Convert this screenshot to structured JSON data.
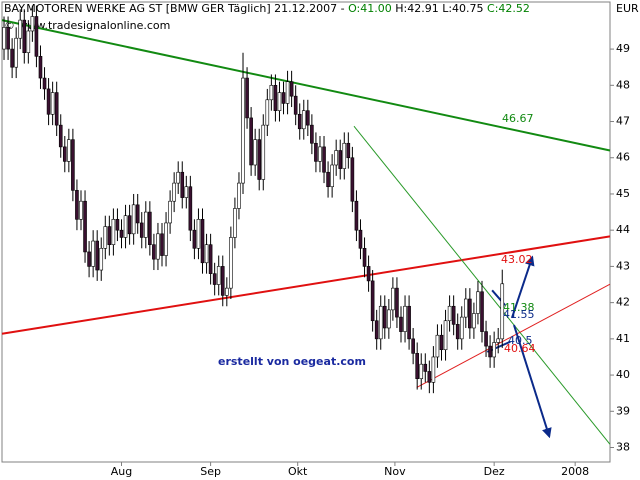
{
  "chart_data": {
    "type": "candlestick",
    "title": [
      "BAY.MOTOREN WERKE AG ST [BMW GER  Täglich] 21.12.2007 - ",
      "O:41.00",
      " H:42.91 L:40.75",
      " C:42.52"
    ],
    "title_colors": [
      "#000000",
      "#008000",
      "#000000",
      "#008000"
    ],
    "copyright": "© www.tradesignalonline.com",
    "credit": "erstellt von oegeat.com",
    "y_unit": "EUR",
    "ylim": [
      37.6,
      50.3
    ],
    "yticks": [
      38,
      39,
      40,
      41,
      42,
      43,
      44,
      45,
      46,
      47,
      48,
      49
    ],
    "xlim": [
      -0.5,
      149.6
    ],
    "xticks": [
      {
        "value": 29,
        "label": "Aug"
      },
      {
        "value": 51,
        "label": "Sep"
      },
      {
        "value": 72.5,
        "label": "Okt"
      },
      {
        "value": 96.5,
        "label": "Nov"
      },
      {
        "value": 121,
        "label": "Dez"
      },
      {
        "value": 141,
        "label": "2008"
      }
    ],
    "up_color": "#ffffff",
    "down_color": "#3a1030",
    "open": [
      49.0,
      49.6,
      49.0,
      48.5,
      49.3,
      49.8,
      48.9,
      49.5,
      49.9,
      48.8,
      48.2,
      47.9,
      47.2,
      47.8,
      46.9,
      46.3,
      45.9,
      46.5,
      45.1,
      44.3,
      44.8,
      43.4,
      43.0,
      43.7,
      42.9,
      43.5,
      44.1,
      43.6,
      44.3,
      44.0,
      43.8,
      44.4,
      43.9,
      44.7,
      44.2,
      43.8,
      44.5,
      43.6,
      43.2,
      43.9,
      43.3,
      44.2,
      44.8,
      45.3,
      45.6,
      44.9,
      45.2,
      44.0,
      43.5,
      44.3,
      43.1,
      43.6,
      42.8,
      42.5,
      43.0,
      42.2,
      42.4,
      43.8,
      44.6,
      45.3,
      48.2,
      47.1,
      45.8,
      46.5,
      45.4,
      46.9,
      47.6,
      48.0,
      47.3,
      47.8,
      47.5,
      48.1,
      47.7,
      47.2,
      46.8,
      47.3,
      46.9,
      46.4,
      45.9,
      46.3,
      45.6,
      45.2,
      45.8,
      46.2,
      45.7,
      46.4,
      46.0,
      44.8,
      44.0,
      43.5,
      43.0,
      42.6,
      41.5,
      41.0,
      41.9,
      41.3,
      41.8,
      42.4,
      41.6,
      41.2,
      41.9,
      41.0,
      40.6,
      39.9,
      40.3,
      40.1,
      39.8,
      40.5,
      41.1,
      40.7,
      41.5,
      41.9,
      41.4,
      41.0,
      41.6,
      42.1,
      41.3,
      41.7,
      42.3,
      41.2,
      40.8,
      40.5,
      40.9,
      41.0
    ],
    "high": [
      49.9,
      49.9,
      49.3,
      49.6,
      50.1,
      50.1,
      49.8,
      50.2,
      50.2,
      49.1,
      48.5,
      48.2,
      48.1,
      48.1,
      47.2,
      46.6,
      46.8,
      46.8,
      45.4,
      45.1,
      45.1,
      43.7,
      44.0,
      44.0,
      43.8,
      44.4,
      44.4,
      44.6,
      44.6,
      44.3,
      44.7,
      44.7,
      45.0,
      45.0,
      44.5,
      44.8,
      44.8,
      43.9,
      44.2,
      44.2,
      44.5,
      45.1,
      45.6,
      45.9,
      45.9,
      45.5,
      45.5,
      44.3,
      44.6,
      44.6,
      43.9,
      43.9,
      43.1,
      43.3,
      43.3,
      42.7,
      44.1,
      44.9,
      45.6,
      48.9,
      48.5,
      47.4,
      46.8,
      46.8,
      47.2,
      47.9,
      48.3,
      48.3,
      48.1,
      48.1,
      48.4,
      48.4,
      48.0,
      47.5,
      47.6,
      47.6,
      47.2,
      46.7,
      46.6,
      46.6,
      45.9,
      46.1,
      46.5,
      46.5,
      46.7,
      46.7,
      46.3,
      45.1,
      44.3,
      43.8,
      43.3,
      42.9,
      41.8,
      42.2,
      42.2,
      42.1,
      42.7,
      42.7,
      41.9,
      42.2,
      42.2,
      41.3,
      40.9,
      40.6,
      40.6,
      40.4,
      40.8,
      41.4,
      41.4,
      41.8,
      42.2,
      42.2,
      41.7,
      41.9,
      42.4,
      42.4,
      42.0,
      42.6,
      42.6,
      41.5,
      41.1,
      41.2,
      41.3,
      42.91
    ],
    "low": [
      48.7,
      48.7,
      48.2,
      48.2,
      49.0,
      48.6,
      48.6,
      49.2,
      48.5,
      47.9,
      47.6,
      46.9,
      46.9,
      46.6,
      46.0,
      45.6,
      45.6,
      44.8,
      44.0,
      44.0,
      43.1,
      42.7,
      42.7,
      42.6,
      42.6,
      43.2,
      43.3,
      43.3,
      43.7,
      43.5,
      43.5,
      43.6,
      43.6,
      43.9,
      43.5,
      43.5,
      43.3,
      42.9,
      42.9,
      43.0,
      43.0,
      43.9,
      44.5,
      45.0,
      44.6,
      44.6,
      43.7,
      43.2,
      43.2,
      42.8,
      42.8,
      42.5,
      42.2,
      42.2,
      41.9,
      41.9,
      42.1,
      43.5,
      44.3,
      45.0,
      46.8,
      45.5,
      45.5,
      45.1,
      45.1,
      46.6,
      47.3,
      47.0,
      47.0,
      47.2,
      47.2,
      47.4,
      46.9,
      46.5,
      46.5,
      46.6,
      46.1,
      45.6,
      45.6,
      45.3,
      44.9,
      44.9,
      45.5,
      45.4,
      45.4,
      45.7,
      44.5,
      43.7,
      43.2,
      42.7,
      42.3,
      41.2,
      40.7,
      40.7,
      41.0,
      41.0,
      41.5,
      41.3,
      40.9,
      40.9,
      40.7,
      40.3,
      39.6,
      39.6,
      39.8,
      39.5,
      39.5,
      40.2,
      40.4,
      40.4,
      41.2,
      41.1,
      40.7,
      40.7,
      41.3,
      41.0,
      41.0,
      41.4,
      40.9,
      40.5,
      40.2,
      40.2,
      40.6,
      40.75
    ],
    "close": [
      49.6,
      49.0,
      48.5,
      49.3,
      49.8,
      48.9,
      49.5,
      49.9,
      48.8,
      48.2,
      47.9,
      47.2,
      47.8,
      46.9,
      46.3,
      45.9,
      46.5,
      45.1,
      44.3,
      44.8,
      43.4,
      43.0,
      43.7,
      42.9,
      43.5,
      44.1,
      43.6,
      44.3,
      44.0,
      43.8,
      44.4,
      43.9,
      44.7,
      44.2,
      43.8,
      44.5,
      43.6,
      43.2,
      43.9,
      43.3,
      44.2,
      44.8,
      45.3,
      45.6,
      44.9,
      45.2,
      44.0,
      43.5,
      44.3,
      43.1,
      43.6,
      42.8,
      42.5,
      43.0,
      42.2,
      42.4,
      43.8,
      44.6,
      45.3,
      48.2,
      47.1,
      45.8,
      46.5,
      45.4,
      46.9,
      47.6,
      48.0,
      47.3,
      47.8,
      47.5,
      48.1,
      47.7,
      47.2,
      46.8,
      47.3,
      46.9,
      46.4,
      45.9,
      46.3,
      45.6,
      45.2,
      45.8,
      46.2,
      45.7,
      46.4,
      46.0,
      44.8,
      44.0,
      43.5,
      43.0,
      42.6,
      41.5,
      41.0,
      41.9,
      41.3,
      41.8,
      42.4,
      41.6,
      41.2,
      41.9,
      41.0,
      40.6,
      39.9,
      40.3,
      40.1,
      39.8,
      40.5,
      41.1,
      40.7,
      41.5,
      41.9,
      41.4,
      41.0,
      41.6,
      42.1,
      41.3,
      41.7,
      42.3,
      41.2,
      40.8,
      40.5,
      40.9,
      41.0,
      42.52
    ],
    "lines": [
      {
        "color": "#128a12",
        "width": 2,
        "x": [
          -0.5,
          149.6
        ],
        "y": [
          49.8,
          46.2
        ],
        "arrow": false
      },
      {
        "color": "#e01010",
        "width": 2,
        "x": [
          -0.5,
          149.6
        ],
        "y": [
          41.14,
          43.83
        ],
        "arrow": false
      },
      {
        "color": "#2a9a2a",
        "width": 1,
        "x": [
          86.4,
          149.6
        ],
        "y": [
          46.87,
          38.09
        ],
        "arrow": false
      },
      {
        "color": "#e02020",
        "width": 1,
        "x": [
          101.9,
          149.6
        ],
        "y": [
          39.66,
          42.51
        ],
        "arrow": false
      },
      {
        "color": "#0b2a8a",
        "width": 2,
        "x": [
          125.4,
          130.4
        ],
        "y": [
          41.58,
          43.25
        ],
        "arrow": true
      },
      {
        "color": "#0b2a8a",
        "width": 2,
        "x": [
          125.9,
          134.6
        ],
        "y": [
          41.38,
          38.31
        ],
        "arrow": true
      },
      {
        "color": "#0b2a8a",
        "width": 2,
        "x": [
          120.5,
          123.7
        ],
        "y": [
          42.34,
          41.93
        ],
        "arrow": false
      },
      {
        "color": "#0b2a8a",
        "width": 2,
        "x": [
          119.3,
          125.0
        ],
        "y": [
          40.64,
          40.92
        ],
        "arrow": false
      }
    ],
    "annotations": [
      {
        "text": "46.67",
        "color": "#128a12"
      },
      {
        "text": "43.02",
        "color": "#e01010"
      },
      {
        "text": "41.38",
        "color": "#128a12"
      },
      {
        "text": "41.55",
        "color": "#0b2a8a"
      },
      {
        "text": "40.5",
        "color": "#0b2a8a"
      },
      {
        "text": "40.64",
        "color": "#e01010"
      }
    ]
  }
}
